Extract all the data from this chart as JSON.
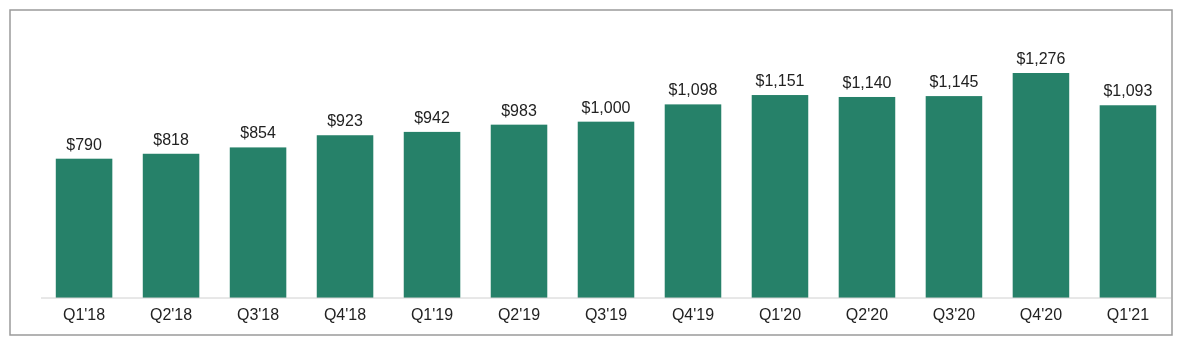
{
  "chart_data": {
    "type": "bar",
    "categories": [
      "Q1'18",
      "Q2'18",
      "Q3'18",
      "Q4'18",
      "Q1'19",
      "Q2'19",
      "Q3'19",
      "Q4'19",
      "Q1'20",
      "Q2'20",
      "Q3'20",
      "Q4'20",
      "Q1'21"
    ],
    "values": [
      790,
      818,
      854,
      923,
      942,
      983,
      1000,
      1098,
      1151,
      1140,
      1145,
      1276,
      1093
    ],
    "value_labels": [
      "$790",
      "$818",
      "$854",
      "$923",
      "$942",
      "$983",
      "$1,000",
      "$1,098",
      "$1,151",
      "$1,140",
      "$1,145",
      "$1,276",
      "$1,093"
    ],
    "color": "#268169"
  }
}
